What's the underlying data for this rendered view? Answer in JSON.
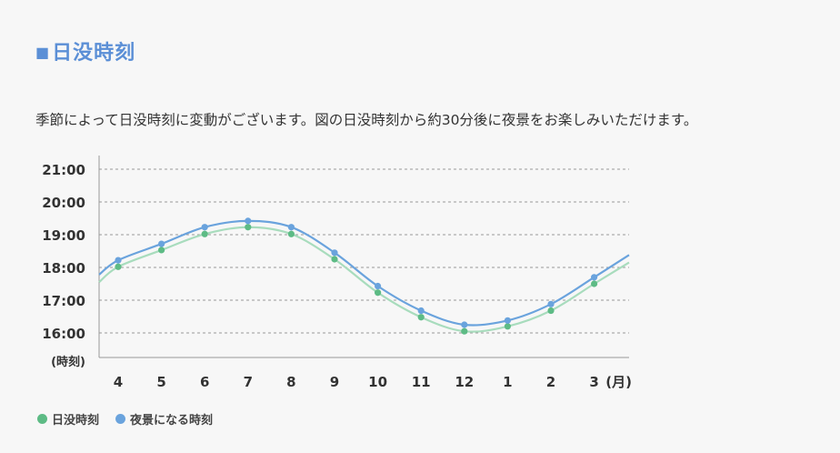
{
  "heading": {
    "marker": "■",
    "title": "日没時刻"
  },
  "description": "季節によって日没時刻に変動がございます。図の日没時刻から約30分後に夜景をお楽しみいただけます。",
  "chart_data": {
    "type": "line",
    "categories": [
      "4",
      "5",
      "6",
      "7",
      "8",
      "9",
      "10",
      "11",
      "12",
      "1",
      "2",
      "3"
    ],
    "x_unit_label": "(月)",
    "y_unit_label": "(時刻)",
    "y_ticks": [
      "16:00",
      "17:00",
      "18:00",
      "19:00",
      "20:00",
      "21:00"
    ],
    "ylim": [
      15.25,
      21.0
    ],
    "grid": true,
    "series": [
      {
        "name": "日没時刻",
        "color": "#5dbb85",
        "line_color": "#a8dcbd",
        "values": [
          18.02,
          18.53,
          19.02,
          19.23,
          19.02,
          18.25,
          17.23,
          16.48,
          16.05,
          16.2,
          16.68,
          17.5
        ],
        "start": 17.55,
        "end": 18.15
      },
      {
        "name": "夜景になる時刻",
        "color": "#6aa3dd",
        "line_color": "#6aa3dd",
        "values": [
          18.22,
          18.72,
          19.23,
          19.42,
          19.23,
          18.45,
          17.43,
          16.68,
          16.25,
          16.38,
          16.88,
          17.7
        ],
        "start": 17.78,
        "end": 18.38
      }
    ],
    "legend": "bottom-left"
  }
}
